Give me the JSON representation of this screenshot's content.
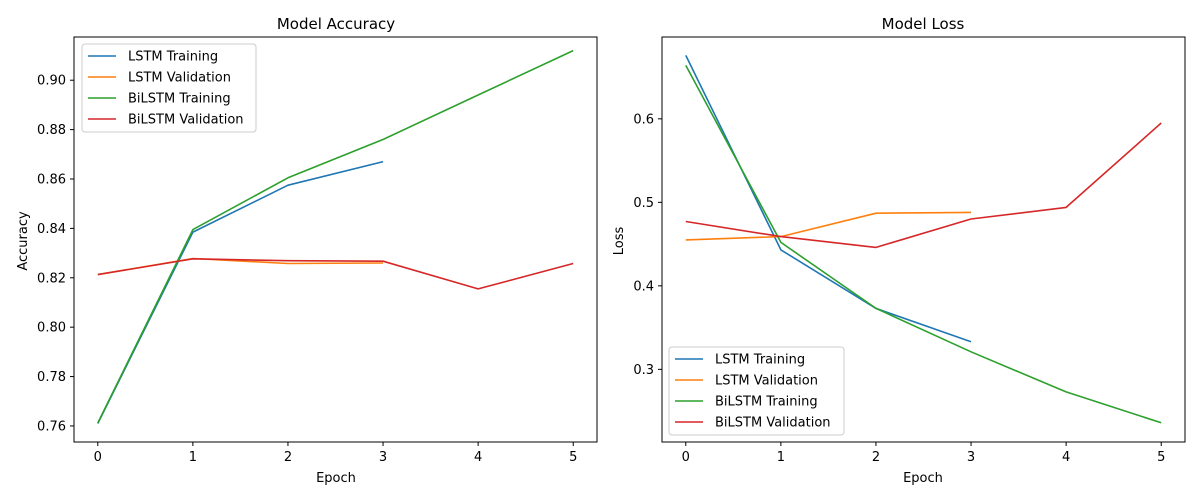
{
  "chart_data": [
    {
      "type": "line",
      "title": "Model Accuracy",
      "xlabel": "Epoch",
      "ylabel": "Accuracy",
      "xlim": [
        -0.25,
        5.25
      ],
      "ylim": [
        0.7535,
        0.9175
      ],
      "xticks": [
        0,
        1,
        2,
        3,
        4,
        5
      ],
      "yticks": [
        0.76,
        0.78,
        0.8,
        0.82,
        0.84,
        0.86,
        0.88,
        0.9
      ],
      "ytick_labels": [
        "0.76",
        "0.78",
        "0.80",
        "0.82",
        "0.84",
        "0.86",
        "0.88",
        "0.90"
      ],
      "legend_position": "upper-left",
      "grid": false,
      "series": [
        {
          "name": "LSTM Training",
          "color": "#1f77b4",
          "x": [
            0,
            1,
            2,
            3
          ],
          "values": [
            0.761,
            0.8385,
            0.8575,
            0.867
          ]
        },
        {
          "name": "LSTM Validation",
          "color": "#ff7f0e",
          "x": [
            0,
            1,
            2,
            3
          ],
          "values": [
            0.8213,
            0.8278,
            0.8258,
            0.826
          ]
        },
        {
          "name": "BiLSTM Training",
          "color": "#2ca02c",
          "x": [
            0,
            1,
            2,
            3,
            4,
            5
          ],
          "values": [
            0.7612,
            0.8395,
            0.8605,
            0.876,
            0.894,
            0.912
          ]
        },
        {
          "name": "BiLSTM Validation",
          "color": "#d62728",
          "x": [
            0,
            1,
            2,
            3,
            4,
            5
          ],
          "values": [
            0.8213,
            0.8277,
            0.8269,
            0.8267,
            0.8155,
            0.8258
          ]
        }
      ]
    },
    {
      "type": "line",
      "title": "Model Loss",
      "xlabel": "Epoch",
      "ylabel": "Loss",
      "xlim": [
        -0.25,
        5.25
      ],
      "ylim": [
        0.213,
        0.698
      ],
      "xticks": [
        0,
        1,
        2,
        3,
        4,
        5
      ],
      "yticks": [
        0.3,
        0.4,
        0.5,
        0.6
      ],
      "ytick_labels": [
        "0.3",
        "0.4",
        "0.5",
        "0.6"
      ],
      "legend_position": "lower-left",
      "grid": false,
      "series": [
        {
          "name": "LSTM Training",
          "color": "#1f77b4",
          "x": [
            0,
            1,
            2,
            3
          ],
          "values": [
            0.676,
            0.443,
            0.373,
            0.333
          ]
        },
        {
          "name": "LSTM Validation",
          "color": "#ff7f0e",
          "x": [
            0,
            1,
            2,
            3
          ],
          "values": [
            0.455,
            0.459,
            0.487,
            0.488
          ]
        },
        {
          "name": "BiLSTM Training",
          "color": "#2ca02c",
          "x": [
            0,
            1,
            2,
            3,
            4,
            5
          ],
          "values": [
            0.664,
            0.452,
            0.373,
            0.321,
            0.273,
            0.236
          ]
        },
        {
          "name": "BiLSTM Validation",
          "color": "#d62728",
          "x": [
            0,
            1,
            2,
            3,
            4,
            5
          ],
          "values": [
            0.477,
            0.459,
            0.446,
            0.48,
            0.494,
            0.595
          ]
        }
      ]
    }
  ]
}
